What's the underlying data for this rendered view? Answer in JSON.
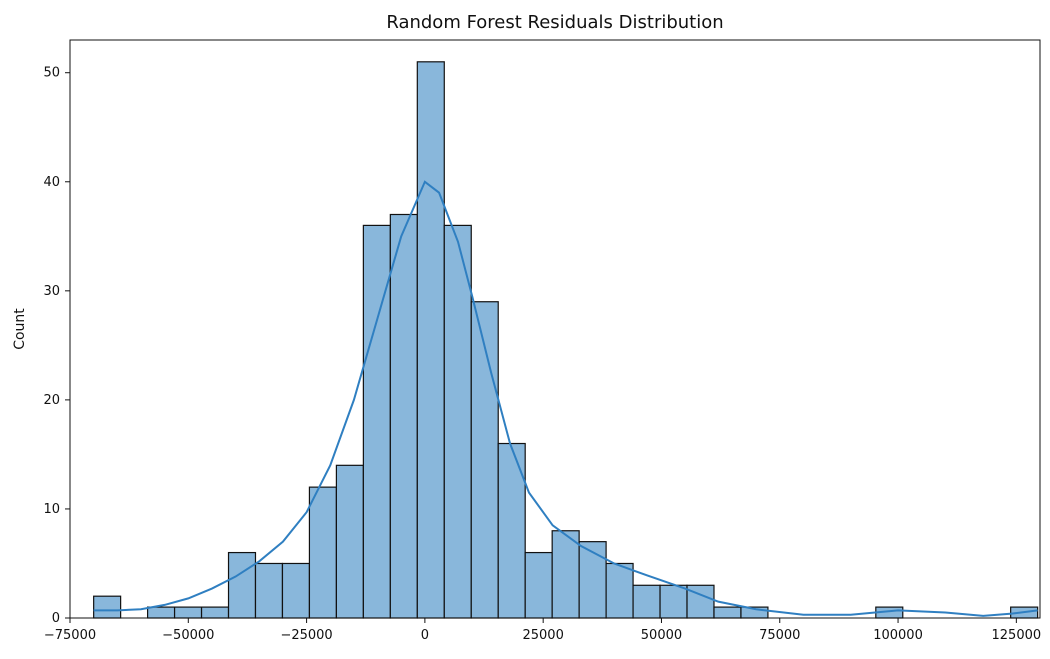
{
  "chart_data": {
    "type": "bar",
    "title": "Random Forest Residuals Distribution",
    "xlabel": "",
    "ylabel": "Count",
    "x_tick_labels": [
      "−75000",
      "−50000",
      "−25000",
      "0",
      "25000",
      "50000",
      "75000",
      "100000",
      "125000"
    ],
    "y_tick_labels": [
      "0",
      "10",
      "20",
      "30",
      "40",
      "50"
    ],
    "xlim": [
      -75000,
      130000
    ],
    "ylim": [
      0,
      53
    ],
    "grid": false,
    "bins": [
      {
        "x0": -70000,
        "x1": -64300,
        "count": 2
      },
      {
        "x0": -64300,
        "x1": -58600,
        "count": 0
      },
      {
        "x0": -58600,
        "x1": -52900,
        "count": 1
      },
      {
        "x0": -52900,
        "x1": -47200,
        "count": 1
      },
      {
        "x0": -47200,
        "x1": -41500,
        "count": 1
      },
      {
        "x0": -41500,
        "x1": -35800,
        "count": 6
      },
      {
        "x0": -35800,
        "x1": -30100,
        "count": 5
      },
      {
        "x0": -30100,
        "x1": -24400,
        "count": 5
      },
      {
        "x0": -24400,
        "x1": -18700,
        "count": 12
      },
      {
        "x0": -18700,
        "x1": -13000,
        "count": 14
      },
      {
        "x0": -13000,
        "x1": -7300,
        "count": 36
      },
      {
        "x0": -7300,
        "x1": -1600,
        "count": 37
      },
      {
        "x0": -1600,
        "x1": 4100,
        "count": 51
      },
      {
        "x0": 4100,
        "x1": 9800,
        "count": 36
      },
      {
        "x0": 9800,
        "x1": 15500,
        "count": 29
      },
      {
        "x0": 15500,
        "x1": 21200,
        "count": 16
      },
      {
        "x0": 21200,
        "x1": 26900,
        "count": 6
      },
      {
        "x0": 26900,
        "x1": 32600,
        "count": 8
      },
      {
        "x0": 32600,
        "x1": 38300,
        "count": 7
      },
      {
        "x0": 38300,
        "x1": 44000,
        "count": 5
      },
      {
        "x0": 44000,
        "x1": 49700,
        "count": 3
      },
      {
        "x0": 49700,
        "x1": 55400,
        "count": 3
      },
      {
        "x0": 55400,
        "x1": 61100,
        "count": 3
      },
      {
        "x0": 61100,
        "x1": 66800,
        "count": 1
      },
      {
        "x0": 66800,
        "x1": 72500,
        "count": 1
      },
      {
        "x0": 72500,
        "x1": 78200,
        "count": 0
      },
      {
        "x0": 78200,
        "x1": 83900,
        "count": 0
      },
      {
        "x0": 83900,
        "x1": 89600,
        "count": 0
      },
      {
        "x0": 89600,
        "x1": 95300,
        "count": 0
      },
      {
        "x0": 95300,
        "x1": 101000,
        "count": 1
      },
      {
        "x0": 101000,
        "x1": 106700,
        "count": 0
      },
      {
        "x0": 106700,
        "x1": 112400,
        "count": 0
      },
      {
        "x0": 112400,
        "x1": 118100,
        "count": 0
      },
      {
        "x0": 118100,
        "x1": 123800,
        "count": 0
      },
      {
        "x0": 123800,
        "x1": 129500,
        "count": 1
      }
    ],
    "kde_curve": [
      {
        "x": -70000,
        "y": 0.7
      },
      {
        "x": -65000,
        "y": 0.7
      },
      {
        "x": -60000,
        "y": 0.8
      },
      {
        "x": -55000,
        "y": 1.2
      },
      {
        "x": -50000,
        "y": 1.8
      },
      {
        "x": -45000,
        "y": 2.7
      },
      {
        "x": -40000,
        "y": 3.8
      },
      {
        "x": -35000,
        "y": 5.2
      },
      {
        "x": -30000,
        "y": 7.0
      },
      {
        "x": -25000,
        "y": 9.7
      },
      {
        "x": -20000,
        "y": 14.0
      },
      {
        "x": -15000,
        "y": 20.0
      },
      {
        "x": -10000,
        "y": 27.5
      },
      {
        "x": -5000,
        "y": 35.0
      },
      {
        "x": 0,
        "y": 40.0
      },
      {
        "x": 3000,
        "y": 39.0
      },
      {
        "x": 7000,
        "y": 34.5
      },
      {
        "x": 10000,
        "y": 29.5
      },
      {
        "x": 14000,
        "y": 22.5
      },
      {
        "x": 18000,
        "y": 16.0
      },
      {
        "x": 22000,
        "y": 11.5
      },
      {
        "x": 27000,
        "y": 8.5
      },
      {
        "x": 33000,
        "y": 6.6
      },
      {
        "x": 40000,
        "y": 5.0
      },
      {
        "x": 47000,
        "y": 3.9
      },
      {
        "x": 55000,
        "y": 2.7
      },
      {
        "x": 62000,
        "y": 1.5
      },
      {
        "x": 70000,
        "y": 0.8
      },
      {
        "x": 80000,
        "y": 0.3
      },
      {
        "x": 90000,
        "y": 0.3
      },
      {
        "x": 100000,
        "y": 0.7
      },
      {
        "x": 110000,
        "y": 0.5
      },
      {
        "x": 118000,
        "y": 0.2
      },
      {
        "x": 124000,
        "y": 0.4
      },
      {
        "x": 129500,
        "y": 0.7
      }
    ]
  }
}
